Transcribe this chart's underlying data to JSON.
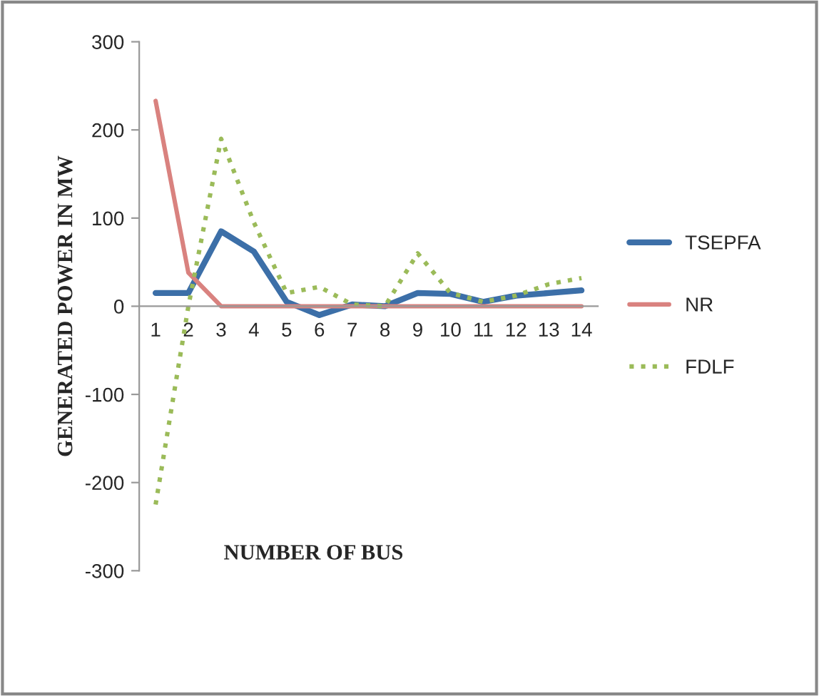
{
  "chart_data": {
    "type": "line",
    "xlabel": "NUMBER OF BUS",
    "ylabel": "GENERATED POWER IN MW",
    "categories": [
      "1",
      "2",
      "3",
      "4",
      "5",
      "6",
      "7",
      "8",
      "9",
      "10",
      "11",
      "12",
      "13",
      "14"
    ],
    "series": [
      {
        "name": "TSEPFA",
        "color": "#3c6fa8",
        "line_style": "solid",
        "values": [
          15,
          15,
          85,
          62,
          5,
          -10,
          2,
          0,
          15,
          14,
          5,
          12,
          15,
          18
        ]
      },
      {
        "name": "NR",
        "color": "#d9827f",
        "line_style": "solid",
        "values": [
          233,
          38,
          0,
          0,
          0,
          0,
          0,
          0,
          0,
          0,
          0,
          0,
          0,
          0
        ]
      },
      {
        "name": "FDLF",
        "color": "#9bbb59",
        "line_style": "dotted",
        "values": [
          -225,
          0,
          190,
          95,
          15,
          22,
          2,
          0,
          60,
          15,
          5,
          12,
          25,
          32
        ]
      }
    ],
    "ylim": [
      -300,
      300
    ],
    "yticks": [
      -300,
      -200,
      -100,
      0,
      100,
      200,
      300
    ],
    "grid": false,
    "legend": "right",
    "marker": "none"
  }
}
